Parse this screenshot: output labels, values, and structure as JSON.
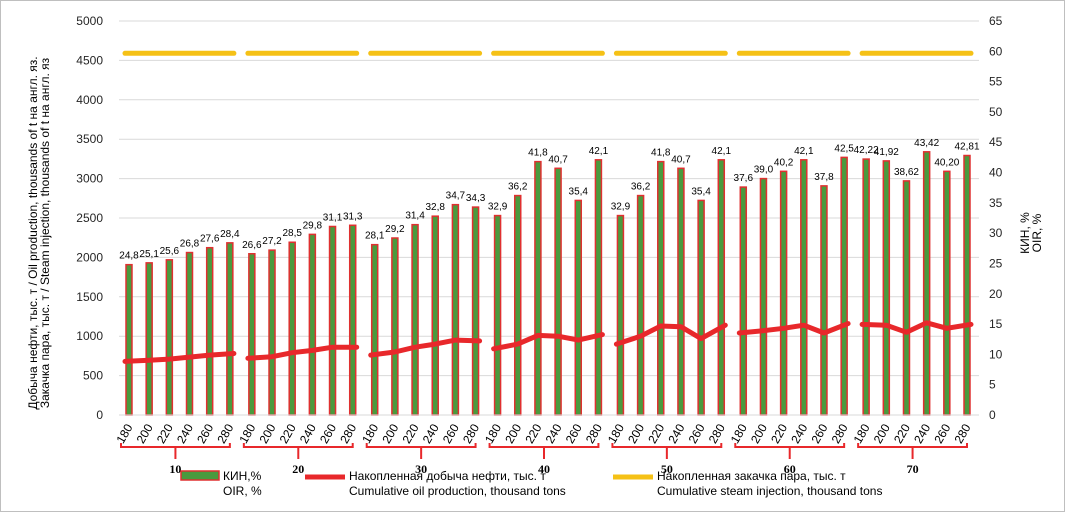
{
  "chart_data": {
    "type": "bar",
    "x_groups": [
      "10",
      "20",
      "30",
      "40",
      "50",
      "60",
      "70"
    ],
    "categories": [
      "180",
      "200",
      "220",
      "240",
      "260",
      "280"
    ],
    "left_axis": {
      "label_line1": "Добыча нефти, тыс. т / Oil production, thousands of t на англ. яз.",
      "label_line2": "Закачка пара, тыс. т / Steam injection, thousands of t на англ. яз",
      "ylim": [
        0,
        5000
      ],
      "ticks": [
        "0",
        "500",
        "1000",
        "1500",
        "2000",
        "2500",
        "3000",
        "3500",
        "4000",
        "4500",
        "5000"
      ]
    },
    "right_axis": {
      "label_line1": "КИН, %",
      "label_line2": "OIR, %",
      "ylim": [
        0,
        65
      ],
      "ticks": [
        "0",
        "5",
        "10",
        "15",
        "20",
        "25",
        "30",
        "35",
        "40",
        "45",
        "50",
        "55",
        "60",
        "65"
      ]
    },
    "series": [
      {
        "name": "КИН,% OIR, %",
        "legend_line1": "КИН,%",
        "legend_line2": "OIR, %",
        "type": "bar",
        "axis": "right",
        "color": "#4a9a3e",
        "border": "#e03030",
        "values": [
          [
            24.8,
            25.1,
            25.6,
            26.8,
            27.6,
            28.4
          ],
          [
            26.6,
            27.2,
            28.5,
            29.8,
            31.1,
            31.3
          ],
          [
            28.1,
            29.2,
            31.4,
            32.8,
            34.7,
            34.3
          ],
          [
            32.9,
            36.2,
            41.8,
            40.7,
            35.4,
            42.1
          ],
          [
            32.9,
            36.2,
            41.8,
            40.7,
            35.4,
            42.1
          ],
          [
            37.6,
            39.0,
            40.2,
            42.1,
            37.8,
            42.5
          ],
          [
            42.22,
            41.92,
            38.62,
            43.42,
            40.2,
            42.81
          ]
        ],
        "labels": [
          [
            "24,8",
            "25,1",
            "25,6",
            "26,8",
            "27,6",
            "28,4"
          ],
          [
            "26,6",
            "27,2",
            "28,5",
            "29,8",
            "31,1",
            "31,3"
          ],
          [
            "28,1",
            "29,2",
            "31,4",
            "32,8",
            "34,7",
            "34,3"
          ],
          [
            "32,9",
            "36,2",
            "41,8",
            "40,7",
            "35,4",
            "42,1"
          ],
          [
            "32,9",
            "36,2",
            "41,8",
            "40,7",
            "35,4",
            "42,1"
          ],
          [
            "37,6",
            "39,0",
            "40,2",
            "42,1",
            "37,8",
            "42,5"
          ],
          [
            "42,22",
            "41,92",
            "38,62",
            "43,42",
            "40,20",
            "42,81"
          ]
        ]
      },
      {
        "name": "Накопленная добыча нефти, тыс. т Cumulative oil production, thousand tons",
        "legend_line1": "Накопленная добыча нефти, тыс. т",
        "legend_line2": "Cumulative oil production, thousand tons",
        "type": "line",
        "axis": "left",
        "color": "#e8282b",
        "values": [
          [
            680,
            695,
            710,
            735,
            760,
            780
          ],
          [
            720,
            740,
            790,
            820,
            860,
            860
          ],
          [
            760,
            800,
            860,
            900,
            950,
            940
          ],
          [
            840,
            900,
            1010,
            1000,
            950,
            1020
          ],
          [
            900,
            1000,
            1130,
            1120,
            970,
            1140
          ],
          [
            1040,
            1070,
            1100,
            1140,
            1040,
            1160
          ],
          [
            1150,
            1140,
            1050,
            1170,
            1100,
            1150
          ]
        ]
      },
      {
        "name": "Накопленная закачка пара, тыс. т Cumulative steam injection, thousand tons",
        "legend_line1": "Накопленная закачка пара, тыс. т",
        "legend_line2": "Cumulative steam injection, thousand tons",
        "type": "line",
        "axis": "left",
        "color": "#f5c116",
        "values": [
          [
            4590,
            4590,
            4590,
            4590,
            4590,
            4590
          ],
          [
            4590,
            4590,
            4590,
            4590,
            4590,
            4590
          ],
          [
            4590,
            4590,
            4590,
            4590,
            4590,
            4590
          ],
          [
            4590,
            4590,
            4590,
            4590,
            4590,
            4590
          ],
          [
            4590,
            4590,
            4590,
            4590,
            4590,
            4590
          ],
          [
            4590,
            4590,
            4590,
            4590,
            4590,
            4590
          ],
          [
            4590,
            4590,
            4590,
            4590,
            4590,
            4590
          ]
        ]
      }
    ],
    "grid": "horizontal",
    "legend_position": "bottom"
  }
}
